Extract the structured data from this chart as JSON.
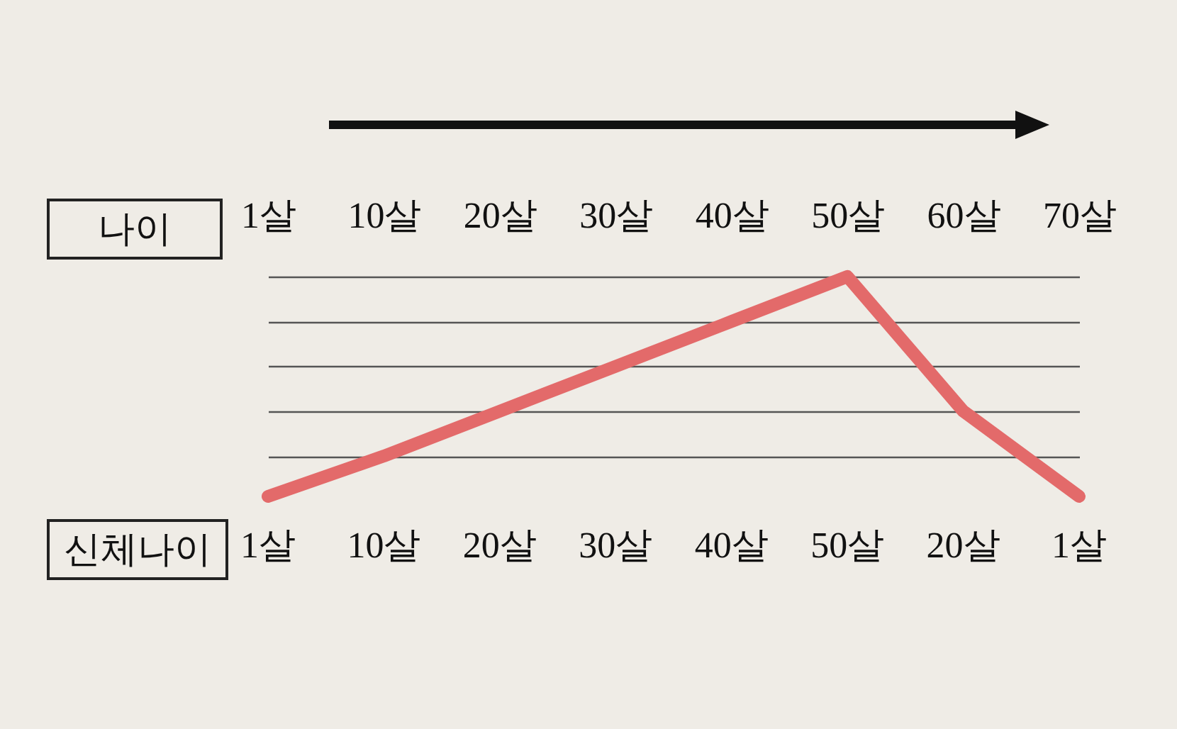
{
  "chart_data": {
    "type": "line",
    "grid": "y",
    "xlabel": "나이",
    "annotations": [
      "신체나이"
    ],
    "categories": [
      "1살",
      "10살",
      "20살",
      "30살",
      "40살",
      "50살",
      "60살",
      "70살"
    ],
    "series": [
      {
        "color": "#e36a6a",
        "values": [
          1,
          10,
          20,
          30,
          40,
          50,
          20,
          1
        ],
        "value_labels": [
          "1살",
          "10살",
          "20살",
          "30살",
          "40살",
          "50살",
          "20살",
          "1살"
        ]
      }
    ]
  }
}
